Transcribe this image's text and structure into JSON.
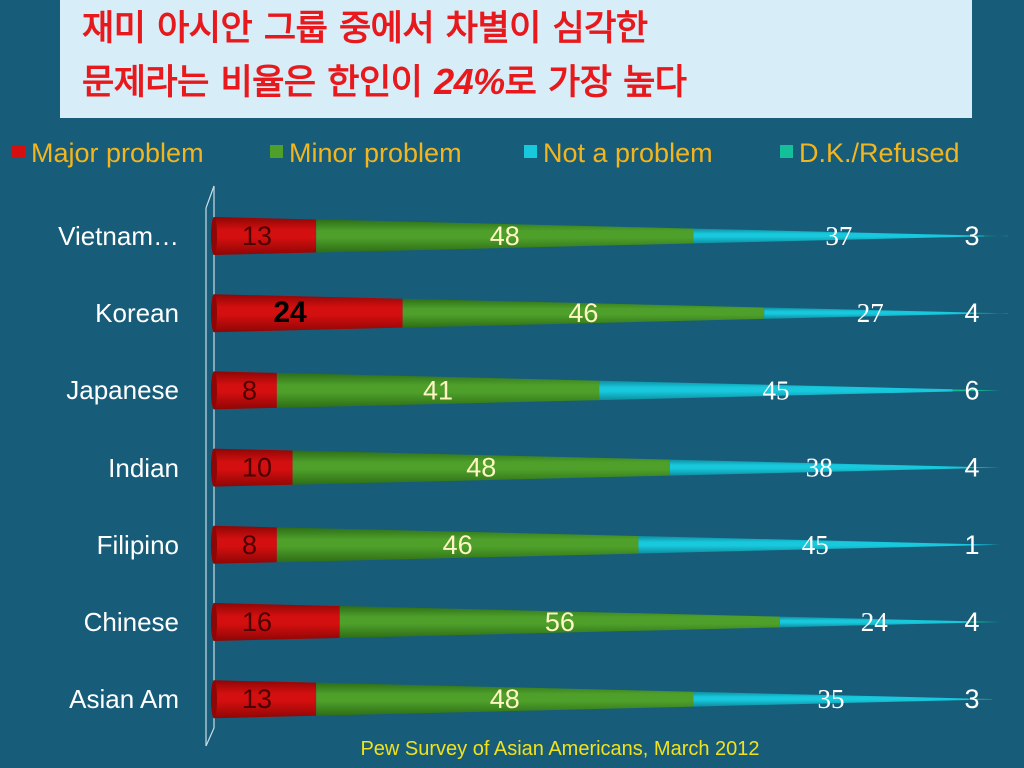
{
  "title": {
    "line1": "재미 아시안 그룹 중에서 차별이 심각한",
    "line2_pre": "문제라는  비율은 한인이 ",
    "line2_highlight": "24%",
    "line2_post": "로 가장 높다"
  },
  "legend": [
    {
      "label": "Major problem",
      "color": "#d40f0f"
    },
    {
      "label": "Minor problem",
      "color": "#4ea02b"
    },
    {
      "label": "Not a problem",
      "color": "#18c8dc"
    },
    {
      "label": "D.K./Refused",
      "color": "#14c09a"
    }
  ],
  "footer": "Pew Survey of Asian Americans, March 2012",
  "chart_data": {
    "type": "bar",
    "orientation": "horizontal",
    "stacked": true,
    "categories": [
      "Vietnam…",
      "Korean",
      "Japanese",
      "Indian",
      "Filipino",
      "Chinese",
      "Asian Am"
    ],
    "series": [
      {
        "name": "Major problem",
        "values": [
          13,
          24,
          8,
          10,
          8,
          16,
          13
        ]
      },
      {
        "name": "Minor problem",
        "values": [
          48,
          46,
          41,
          48,
          46,
          56,
          48
        ]
      },
      {
        "name": "Not a problem",
        "values": [
          37,
          27,
          45,
          38,
          45,
          24,
          35
        ]
      },
      {
        "name": "D.K./Refused",
        "values": [
          3,
          4,
          6,
          4,
          1,
          4,
          3
        ]
      }
    ],
    "xlim": [
      0,
      100
    ],
    "legend_position": "top",
    "grid": false
  }
}
